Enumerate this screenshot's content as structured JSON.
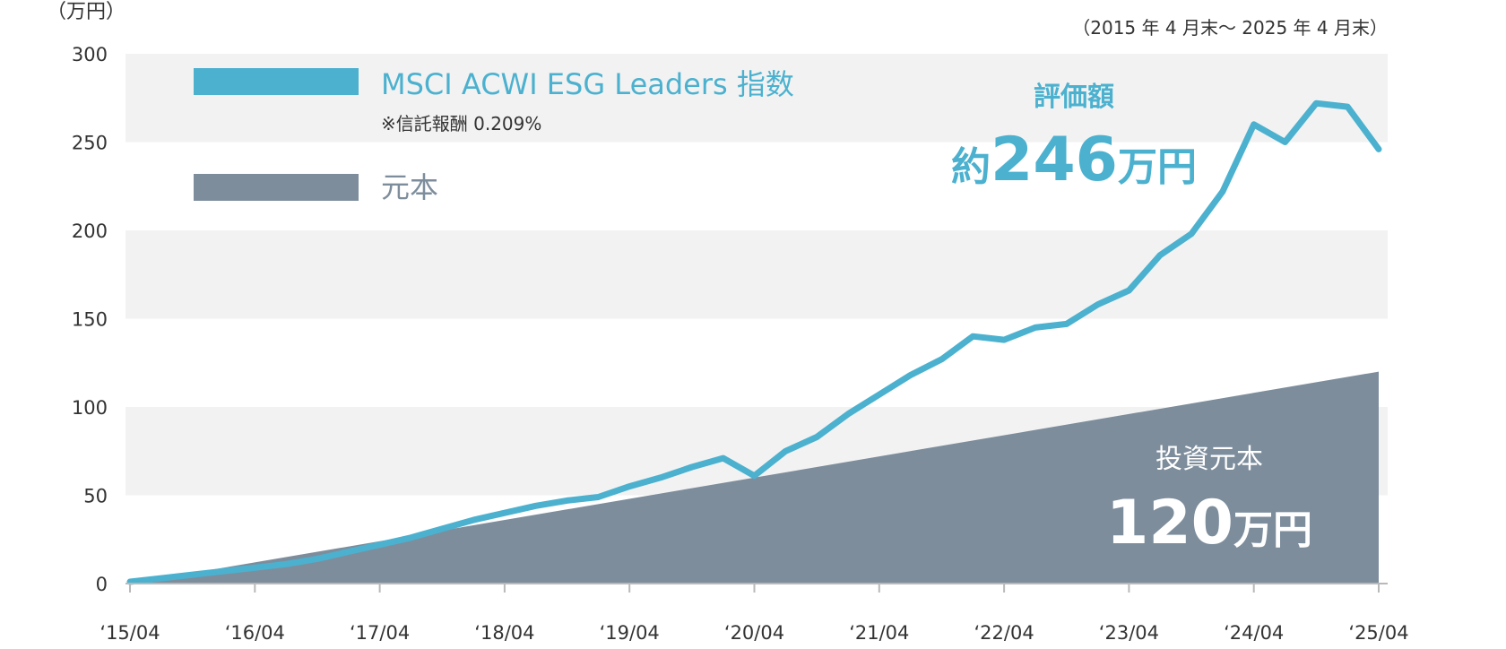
{
  "chart_data": {
    "type": "area",
    "unit_label": "（万円）",
    "period_note": "（2015 年 4 月末〜 2025 年 4 月末）",
    "colors": {
      "index": "#4bb1cf",
      "principal": "#7d8d9c",
      "band": "#f2f2f2",
      "axis": "#b9b9b9",
      "text": "#333333"
    },
    "ylim": [
      0,
      300
    ],
    "y_ticks": [
      0,
      50,
      100,
      150,
      200,
      250,
      300
    ],
    "y_tick_labels": [
      "0",
      "50",
      "100",
      "150",
      "200",
      "250",
      "300"
    ],
    "x_ticks": [
      "2015-04",
      "2016-04",
      "2017-04",
      "2018-04",
      "2019-04",
      "2020-04",
      "2021-04",
      "2022-04",
      "2023-04",
      "2024-04",
      "2025-04"
    ],
    "x_tick_labels": [
      "‘15/04",
      "‘16/04",
      "‘17/04",
      "‘18/04",
      "‘19/04",
      "‘20/04",
      "‘21/04",
      "‘22/04",
      "‘23/04",
      "‘24/04",
      "‘25/04"
    ],
    "legend": {
      "index_label": "MSCI ACWI ESG Leaders 指数",
      "fee_note": "※信託報酬 0.209%",
      "principal_label": "元本"
    },
    "annotations": {
      "value_title": "評価額",
      "value_prefix": "約",
      "value_number": "246",
      "value_unit": "万円",
      "principal_title": "投資元本",
      "principal_number": "120",
      "principal_unit": "万円"
    },
    "series": [
      {
        "name": "MSCI ACWI ESG Leaders 指数",
        "kind": "line",
        "points": [
          [
            "2015-04",
            1
          ],
          [
            "2015-07",
            3
          ],
          [
            "2015-10",
            5
          ],
          [
            "2016-01",
            7
          ],
          [
            "2016-04",
            9
          ],
          [
            "2016-07",
            11
          ],
          [
            "2016-10",
            14
          ],
          [
            "2017-01",
            18
          ],
          [
            "2017-04",
            22
          ],
          [
            "2017-07",
            26
          ],
          [
            "2017-10",
            31
          ],
          [
            "2018-01",
            36
          ],
          [
            "2018-04",
            40
          ],
          [
            "2018-07",
            44
          ],
          [
            "2018-10",
            47
          ],
          [
            "2019-01",
            49
          ],
          [
            "2019-04",
            55
          ],
          [
            "2019-07",
            60
          ],
          [
            "2019-10",
            66
          ],
          [
            "2020-01",
            71
          ],
          [
            "2020-04",
            61
          ],
          [
            "2020-07",
            75
          ],
          [
            "2020-10",
            83
          ],
          [
            "2021-01",
            96
          ],
          [
            "2021-04",
            107
          ],
          [
            "2021-07",
            118
          ],
          [
            "2021-10",
            127
          ],
          [
            "2022-01",
            140
          ],
          [
            "2022-04",
            138
          ],
          [
            "2022-07",
            145
          ],
          [
            "2022-10",
            147
          ],
          [
            "2023-01",
            158
          ],
          [
            "2023-04",
            166
          ],
          [
            "2023-07",
            186
          ],
          [
            "2023-10",
            198
          ],
          [
            "2024-01",
            222
          ],
          [
            "2024-04",
            260
          ],
          [
            "2024-07",
            250
          ],
          [
            "2024-10",
            272
          ],
          [
            "2025-01",
            270
          ],
          [
            "2025-04",
            246
          ]
        ]
      },
      {
        "name": "元本",
        "kind": "area",
        "points": [
          [
            "2015-04",
            0
          ],
          [
            "2025-04",
            120
          ]
        ]
      }
    ]
  }
}
